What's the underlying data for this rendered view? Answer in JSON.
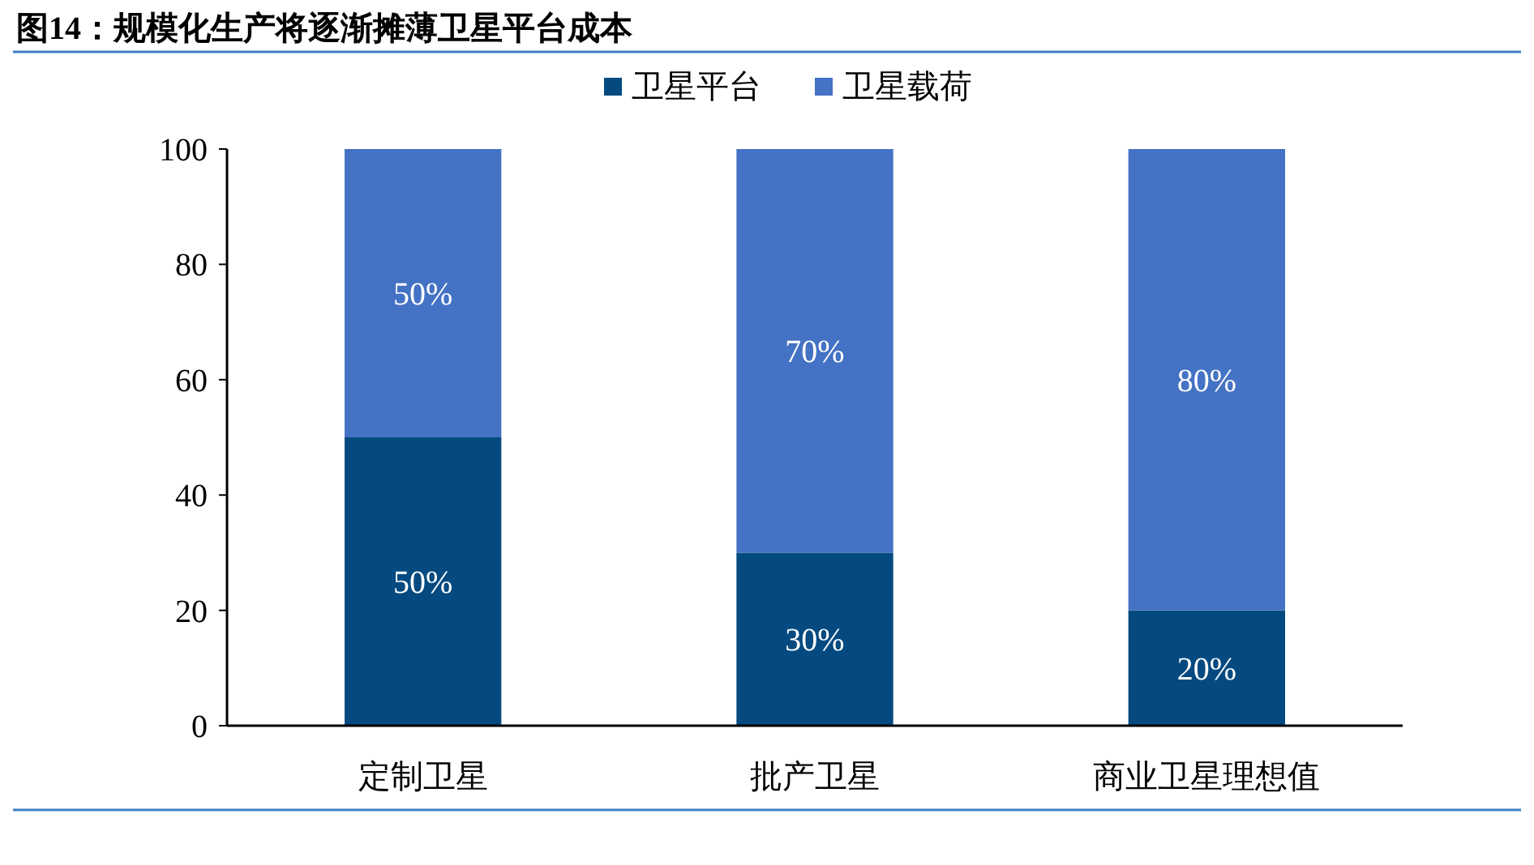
{
  "chart_data": {
    "type": "bar",
    "title": "图14：规模化生产将逐渐摊薄卫星平台成本",
    "categories": [
      "定制卫星",
      "批产卫星",
      "商业卫星理想值"
    ],
    "stacked": true,
    "series": [
      {
        "name": "卫星平台",
        "color": "#044a80",
        "values": [
          50,
          30,
          20
        ],
        "value_labels": [
          "50%",
          "30%",
          "20%"
        ]
      },
      {
        "name": "卫星载荷",
        "color": "#4472c4",
        "values": [
          50,
          70,
          80
        ],
        "value_labels": [
          "50%",
          "70%",
          "80%"
        ]
      }
    ],
    "ylim": [
      0,
      100
    ],
    "yticks": [
      0,
      20,
      40,
      60,
      80,
      100
    ],
    "grid": false,
    "legend": "top"
  }
}
